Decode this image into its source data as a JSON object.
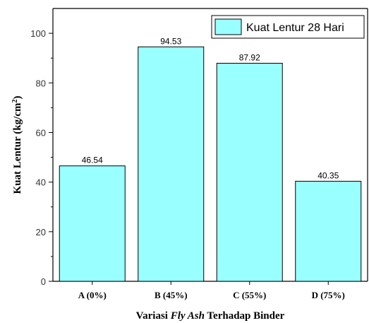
{
  "chart_data": {
    "type": "bar",
    "categories": [
      "A (0%)",
      "B (45%)",
      "C (55%)",
      "D (75%)"
    ],
    "series": [
      {
        "name": "Kuat Lentur 28 Hari",
        "values": [
          46.54,
          94.53,
          87.92,
          40.35
        ]
      }
    ],
    "data_labels": [
      "46.54",
      "94.53",
      "87.92",
      "40.35"
    ],
    "xlabel": {
      "pre": "Variasi ",
      "italic": "Fly Ash",
      "post": " Terhadap Binder"
    },
    "ylabel": {
      "main": "Kuat Lentur (kg/cm",
      "sup": "2",
      "close": ")"
    },
    "ylim": [
      0,
      110
    ],
    "yticks": [
      0,
      20,
      40,
      60,
      80,
      100
    ],
    "yticks_labels": [
      "0",
      "20",
      "40",
      "60",
      "80",
      "100"
    ],
    "legend_position": "top-right",
    "grid": false,
    "bar_color": "#99ffff",
    "bar_stroke": "#000000"
  }
}
